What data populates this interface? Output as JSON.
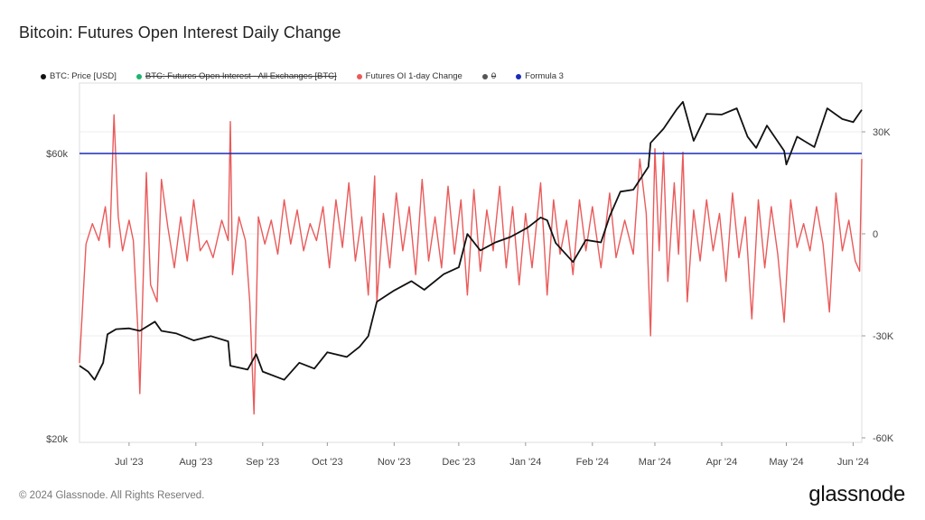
{
  "title": "Bitcoin: Futures Open Interest Daily Change",
  "legend": [
    {
      "label": "BTC: Price [USD]",
      "color": "#111111",
      "disabled": false
    },
    {
      "label": "BTC: Futures Open Interest - All Exchanges [BTC]",
      "color": "#1db56a",
      "disabled": true
    },
    {
      "label": "Futures OI 1-day Change",
      "color": "#ea5a5a",
      "disabled": false
    },
    {
      "label": "0",
      "color": "#555555",
      "disabled": true
    },
    {
      "label": "Formula 3",
      "color": "#1a2bb8",
      "disabled": false
    }
  ],
  "footer": "© 2024 Glassnode. All Rights Reserved.",
  "brand": "glassnode",
  "chart_data": {
    "type": "line",
    "x_ticks": [
      "Jul '23",
      "Aug '23",
      "Sep '23",
      "Oct '23",
      "Nov '23",
      "Dec '23",
      "Jan '24",
      "Feb '24",
      "Mar '24",
      "Apr '24",
      "May '24",
      "Jun '24"
    ],
    "x_range": [
      "2023-06-08",
      "2024-06-05"
    ],
    "y_left": {
      "ticks": [
        "$20k",
        "$60k"
      ],
      "tick_values": [
        20000,
        60000
      ],
      "scale": "log",
      "range": [
        20000,
        80000
      ]
    },
    "y_right": {
      "ticks": [
        "30K",
        "0",
        "-30K",
        "-60K"
      ],
      "tick_values": [
        30000,
        0,
        -30000,
        -60000
      ],
      "range": [
        -60000,
        45000
      ]
    },
    "grid": true,
    "legend_position": "top-left",
    "formula_line": {
      "name": "Formula 3",
      "value": 60000,
      "axis": "left",
      "color": "#1a2bb8"
    },
    "series": [
      {
        "name": "BTC: Price [USD]",
        "axis": "left",
        "color": "#111111",
        "points": [
          [
            "2023-06-08",
            26500
          ],
          [
            "2023-06-12",
            25900
          ],
          [
            "2023-06-15",
            25100
          ],
          [
            "2023-06-19",
            26800
          ],
          [
            "2023-06-21",
            29900
          ],
          [
            "2023-06-25",
            30500
          ],
          [
            "2023-07-01",
            30600
          ],
          [
            "2023-07-06",
            30300
          ],
          [
            "2023-07-13",
            31400
          ],
          [
            "2023-07-16",
            30300
          ],
          [
            "2023-07-23",
            30000
          ],
          [
            "2023-07-31",
            29200
          ],
          [
            "2023-08-08",
            29700
          ],
          [
            "2023-08-16",
            29100
          ],
          [
            "2023-08-17",
            26500
          ],
          [
            "2023-08-25",
            26100
          ],
          [
            "2023-08-29",
            27700
          ],
          [
            "2023-09-01",
            25900
          ],
          [
            "2023-09-11",
            25100
          ],
          [
            "2023-09-18",
            26800
          ],
          [
            "2023-09-25",
            26200
          ],
          [
            "2023-10-01",
            27900
          ],
          [
            "2023-10-10",
            27400
          ],
          [
            "2023-10-16",
            28500
          ],
          [
            "2023-10-20",
            29700
          ],
          [
            "2023-10-24",
            33900
          ],
          [
            "2023-11-01",
            35400
          ],
          [
            "2023-11-09",
            36700
          ],
          [
            "2023-11-15",
            35500
          ],
          [
            "2023-11-24",
            37700
          ],
          [
            "2023-12-01",
            38700
          ],
          [
            "2023-12-05",
            44000
          ],
          [
            "2023-12-11",
            41300
          ],
          [
            "2023-12-18",
            42600
          ],
          [
            "2023-12-25",
            43500
          ],
          [
            "2024-01-02",
            45100
          ],
          [
            "2024-01-08",
            46900
          ],
          [
            "2024-01-11",
            46400
          ],
          [
            "2024-01-15",
            42500
          ],
          [
            "2024-01-23",
            39500
          ],
          [
            "2024-01-29",
            43000
          ],
          [
            "2024-02-05",
            42600
          ],
          [
            "2024-02-09",
            47100
          ],
          [
            "2024-02-14",
            51800
          ],
          [
            "2024-02-20",
            52200
          ],
          [
            "2024-02-27",
            57000
          ],
          [
            "2024-02-28",
            62500
          ],
          [
            "2024-03-05",
            66000
          ],
          [
            "2024-03-11",
            71000
          ],
          [
            "2024-03-14",
            73200
          ],
          [
            "2024-03-19",
            63000
          ],
          [
            "2024-03-25",
            69900
          ],
          [
            "2024-04-01",
            69700
          ],
          [
            "2024-04-08",
            71400
          ],
          [
            "2024-04-13",
            64000
          ],
          [
            "2024-04-17",
            61300
          ],
          [
            "2024-04-22",
            66800
          ],
          [
            "2024-04-30",
            60600
          ],
          [
            "2024-05-01",
            57500
          ],
          [
            "2024-05-06",
            64000
          ],
          [
            "2024-05-14",
            61500
          ],
          [
            "2024-05-20",
            71400
          ],
          [
            "2024-05-27",
            68500
          ],
          [
            "2024-06-01",
            67700
          ],
          [
            "2024-06-05",
            71000
          ]
        ]
      },
      {
        "name": "Futures OI 1-day Change",
        "axis": "right",
        "color": "#ea5a5a",
        "points": [
          [
            "2023-06-08",
            -38000
          ],
          [
            "2023-06-11",
            -3000
          ],
          [
            "2023-06-14",
            3000
          ],
          [
            "2023-06-17",
            -2000
          ],
          [
            "2023-06-20",
            8000
          ],
          [
            "2023-06-22",
            -4000
          ],
          [
            "2023-06-24",
            35000
          ],
          [
            "2023-06-26",
            5000
          ],
          [
            "2023-06-28",
            -5000
          ],
          [
            "2023-07-01",
            4000
          ],
          [
            "2023-07-03",
            -2000
          ],
          [
            "2023-07-05",
            -27000
          ],
          [
            "2023-07-06",
            -47000
          ],
          [
            "2023-07-09",
            18000
          ],
          [
            "2023-07-11",
            -15000
          ],
          [
            "2023-07-14",
            -20000
          ],
          [
            "2023-07-16",
            16000
          ],
          [
            "2023-07-19",
            2000
          ],
          [
            "2023-07-22",
            -10000
          ],
          [
            "2023-07-25",
            5000
          ],
          [
            "2023-07-28",
            -8000
          ],
          [
            "2023-07-31",
            10000
          ],
          [
            "2023-08-03",
            -5000
          ],
          [
            "2023-08-06",
            -2000
          ],
          [
            "2023-08-09",
            -7000
          ],
          [
            "2023-08-13",
            4000
          ],
          [
            "2023-08-16",
            -2000
          ],
          [
            "2023-08-17",
            33000
          ],
          [
            "2023-08-18",
            -12000
          ],
          [
            "2023-08-21",
            5000
          ],
          [
            "2023-08-24",
            -2000
          ],
          [
            "2023-08-26",
            -20000
          ],
          [
            "2023-08-28",
            -53000
          ],
          [
            "2023-08-30",
            5000
          ],
          [
            "2023-09-02",
            -3000
          ],
          [
            "2023-09-05",
            4000
          ],
          [
            "2023-09-08",
            -6000
          ],
          [
            "2023-09-11",
            10000
          ],
          [
            "2023-09-14",
            -3000
          ],
          [
            "2023-09-17",
            7000
          ],
          [
            "2023-09-20",
            -5000
          ],
          [
            "2023-09-23",
            3000
          ],
          [
            "2023-09-26",
            -2000
          ],
          [
            "2023-09-29",
            8000
          ],
          [
            "2023-10-02",
            -10000
          ],
          [
            "2023-10-05",
            10000
          ],
          [
            "2023-10-08",
            -4000
          ],
          [
            "2023-10-11",
            15000
          ],
          [
            "2023-10-14",
            -8000
          ],
          [
            "2023-10-17",
            5000
          ],
          [
            "2023-10-20",
            -18000
          ],
          [
            "2023-10-23",
            17000
          ],
          [
            "2023-10-24",
            -20000
          ],
          [
            "2023-10-27",
            6000
          ],
          [
            "2023-10-30",
            -10000
          ],
          [
            "2023-11-02",
            12000
          ],
          [
            "2023-11-05",
            -5000
          ],
          [
            "2023-11-08",
            8000
          ],
          [
            "2023-11-11",
            -12000
          ],
          [
            "2023-11-14",
            16000
          ],
          [
            "2023-11-17",
            -8000
          ],
          [
            "2023-11-20",
            5000
          ],
          [
            "2023-11-23",
            -10000
          ],
          [
            "2023-11-26",
            14000
          ],
          [
            "2023-11-29",
            -6000
          ],
          [
            "2023-12-02",
            10000
          ],
          [
            "2023-12-05",
            -18000
          ],
          [
            "2023-12-08",
            13000
          ],
          [
            "2023-12-11",
            -11000
          ],
          [
            "2023-12-14",
            7000
          ],
          [
            "2023-12-17",
            -5000
          ],
          [
            "2023-12-20",
            14000
          ],
          [
            "2023-12-23",
            -10000
          ],
          [
            "2023-12-26",
            8000
          ],
          [
            "2023-12-29",
            -15000
          ],
          [
            "2024-01-01",
            6000
          ],
          [
            "2024-01-04",
            -10000
          ],
          [
            "2024-01-08",
            15000
          ],
          [
            "2024-01-11",
            -18000
          ],
          [
            "2024-01-14",
            10000
          ],
          [
            "2024-01-17",
            -6000
          ],
          [
            "2024-01-20",
            4000
          ],
          [
            "2024-01-23",
            -12000
          ],
          [
            "2024-01-26",
            10000
          ],
          [
            "2024-01-29",
            -5000
          ],
          [
            "2024-02-01",
            8000
          ],
          [
            "2024-02-05",
            -10000
          ],
          [
            "2024-02-09",
            12000
          ],
          [
            "2024-02-12",
            -7000
          ],
          [
            "2024-02-16",
            4000
          ],
          [
            "2024-02-20",
            -6000
          ],
          [
            "2024-02-23",
            22000
          ],
          [
            "2024-02-26",
            6000
          ],
          [
            "2024-02-28",
            -30000
          ],
          [
            "2024-03-01",
            25000
          ],
          [
            "2024-03-03",
            -5000
          ],
          [
            "2024-03-05",
            24000
          ],
          [
            "2024-03-07",
            -14000
          ],
          [
            "2024-03-10",
            15000
          ],
          [
            "2024-03-12",
            -6000
          ],
          [
            "2024-03-14",
            24000
          ],
          [
            "2024-03-16",
            -20000
          ],
          [
            "2024-03-19",
            7000
          ],
          [
            "2024-03-22",
            -8000
          ],
          [
            "2024-03-25",
            10000
          ],
          [
            "2024-03-28",
            -5000
          ],
          [
            "2024-03-31",
            6000
          ],
          [
            "2024-04-03",
            -14000
          ],
          [
            "2024-04-06",
            12000
          ],
          [
            "2024-04-09",
            -7000
          ],
          [
            "2024-04-12",
            5000
          ],
          [
            "2024-04-15",
            -25000
          ],
          [
            "2024-04-18",
            10000
          ],
          [
            "2024-04-21",
            -10000
          ],
          [
            "2024-04-24",
            8000
          ],
          [
            "2024-04-27",
            -6000
          ],
          [
            "2024-04-30",
            -26000
          ],
          [
            "2024-05-03",
            10000
          ],
          [
            "2024-05-06",
            -4000
          ],
          [
            "2024-05-09",
            3000
          ],
          [
            "2024-05-12",
            -5000
          ],
          [
            "2024-05-15",
            8000
          ],
          [
            "2024-05-18",
            -3000
          ],
          [
            "2024-05-21",
            -23000
          ],
          [
            "2024-05-24",
            12000
          ],
          [
            "2024-05-27",
            -5000
          ],
          [
            "2024-05-30",
            4000
          ],
          [
            "2024-06-02",
            -8000
          ],
          [
            "2024-06-04",
            -11000
          ],
          [
            "2024-06-05",
            22000
          ]
        ]
      }
    ]
  }
}
